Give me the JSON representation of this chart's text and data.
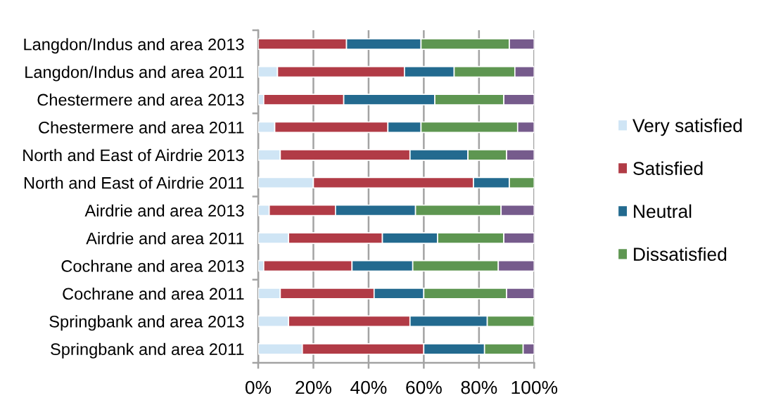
{
  "chart_data": {
    "type": "bar",
    "orientation": "horizontal",
    "stacked": true,
    "categories": [
      "Langdon/Indus and area 2013",
      "Langdon/Indus and area 2011",
      "Chestermere and area 2013",
      "Chestermere and area 2011",
      "North and East of Airdrie 2013",
      "North and East of Airdrie 2011",
      "Airdrie and area 2013",
      "Airdrie and area 2011",
      "Cochrane and area 2013",
      "Cochrane and area 2011",
      "Springbank and area 2013",
      "Springbank and area 2011"
    ],
    "series": [
      {
        "name": "Very satisfied",
        "color": "#cfe5f5",
        "values": [
          null,
          7,
          2,
          6,
          8,
          20,
          4,
          11,
          2,
          8,
          11,
          16
        ]
      },
      {
        "name": "Satisfied",
        "color": "#b13b46",
        "values": [
          32,
          46,
          29,
          41,
          47,
          58,
          24,
          34,
          32,
          34,
          44,
          44
        ]
      },
      {
        "name": "Neutral",
        "color": "#236a8f",
        "values": [
          27,
          18,
          33,
          12,
          21,
          13,
          29,
          20,
          22,
          18,
          28,
          22
        ]
      },
      {
        "name": "Dissatisfied",
        "color": "#5e9651",
        "values": [
          32,
          22,
          25,
          35,
          14,
          9,
          31,
          24,
          31,
          30,
          17,
          14
        ]
      },
      {
        "color": "#765b8c",
        "values": [
          9,
          7,
          11,
          6,
          10,
          null,
          12,
          11,
          13,
          10,
          null,
          4
        ]
      }
    ],
    "xlim": [
      0,
      100
    ],
    "xticks": [
      {
        "value": 0,
        "label": "0%"
      },
      {
        "value": 20,
        "label": "20%"
      },
      {
        "value": 40,
        "label": "40%"
      },
      {
        "value": 60,
        "label": "60%"
      },
      {
        "value": 80,
        "label": "80%"
      },
      {
        "value": 100,
        "label": "100%"
      }
    ],
    "grid": "x",
    "legend": "right"
  }
}
